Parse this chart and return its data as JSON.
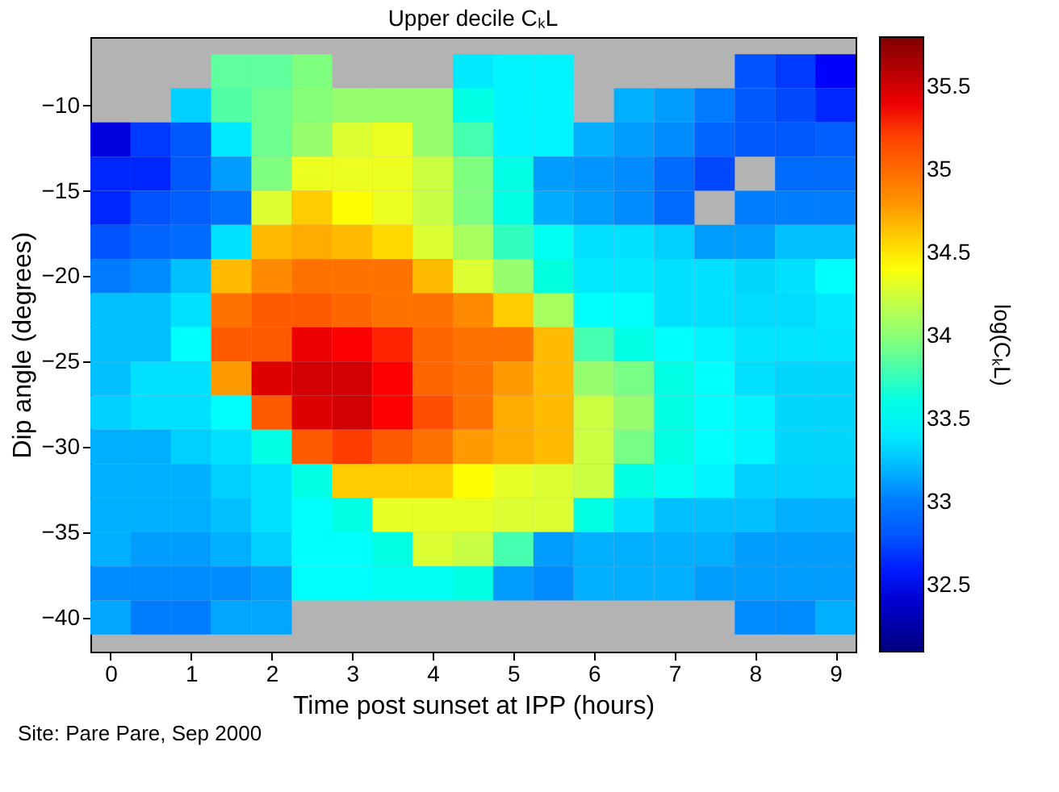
{
  "chart_data": {
    "type": "heatmap",
    "title": "Upper decile CₖL",
    "xlabel": "Time post sunset at IPP (hours)",
    "ylabel": "Dip angle (degrees)",
    "clabel": "log(CₖL)",
    "annotations": [
      "Site: Pare Pare,   Sep 2000"
    ],
    "x": [
      0,
      0.5,
      1,
      1.5,
      2,
      2.5,
      3,
      3.5,
      4,
      4.5,
      5,
      5.5,
      6,
      6.5,
      7,
      7.5,
      8,
      8.5,
      9
    ],
    "y": [
      -8,
      -10,
      -12,
      -14,
      -16,
      -18,
      -20,
      -22,
      -24,
      -26,
      -28,
      -30,
      -32,
      -34,
      -36,
      -38,
      -40
    ],
    "cells": [
      [
        null,
        null,
        null,
        33.86,
        33.86,
        33.95,
        null,
        null,
        null,
        33.4,
        33.44,
        33.44,
        null,
        null,
        null,
        null,
        32.79,
        32.68,
        32.56
      ],
      [
        null,
        null,
        33.3,
        33.83,
        33.9,
        33.98,
        34.04,
        34.04,
        34.04,
        33.61,
        33.45,
        33.45,
        null,
        33.18,
        33.12,
        33.0,
        32.81,
        32.74,
        32.62
      ],
      [
        32.45,
        32.68,
        32.81,
        33.4,
        33.9,
        34.04,
        34.29,
        34.35,
        34.04,
        33.8,
        33.44,
        33.44,
        33.18,
        33.12,
        33.06,
        32.87,
        32.81,
        32.81,
        32.85
      ],
      [
        32.62,
        32.62,
        32.81,
        33.12,
        33.95,
        34.35,
        34.35,
        34.35,
        34.23,
        33.95,
        33.61,
        33.12,
        33.09,
        33.06,
        32.91,
        32.74,
        null,
        32.91,
        32.91
      ],
      [
        32.62,
        32.79,
        32.85,
        32.93,
        34.29,
        34.6,
        34.41,
        34.35,
        34.22,
        33.95,
        33.61,
        33.17,
        33.12,
        33.06,
        32.91,
        null,
        33.02,
        33.02,
        33.02
      ],
      [
        32.79,
        32.87,
        32.91,
        33.36,
        34.66,
        34.72,
        34.66,
        34.55,
        34.29,
        34.1,
        33.75,
        33.55,
        33.36,
        33.36,
        33.3,
        33.12,
        33.12,
        33.24,
        33.24
      ],
      [
        33.0,
        33.06,
        33.24,
        34.66,
        34.84,
        34.96,
        34.96,
        34.96,
        34.66,
        34.29,
        34.04,
        33.63,
        33.4,
        33.4,
        33.36,
        33.36,
        33.32,
        33.36,
        33.49
      ],
      [
        33.24,
        33.24,
        33.36,
        34.96,
        35.09,
        35.09,
        35.03,
        34.96,
        34.96,
        34.84,
        34.6,
        34.1,
        33.49,
        33.49,
        33.36,
        33.36,
        33.34,
        33.34,
        33.4
      ],
      [
        33.24,
        33.24,
        33.49,
        35.09,
        35.09,
        35.4,
        35.34,
        35.29,
        35.03,
        34.96,
        34.96,
        34.66,
        33.8,
        33.61,
        33.49,
        33.44,
        33.38,
        33.38,
        33.38
      ],
      [
        33.24,
        33.36,
        33.36,
        34.78,
        35.45,
        35.5,
        35.5,
        35.34,
        35.03,
        34.96,
        34.78,
        34.66,
        34.04,
        33.93,
        33.61,
        33.49,
        33.36,
        33.32,
        33.32
      ],
      [
        33.3,
        33.36,
        33.36,
        33.49,
        35.09,
        35.45,
        35.5,
        35.34,
        35.15,
        34.96,
        34.72,
        34.66,
        34.23,
        34.04,
        33.61,
        33.49,
        33.45,
        33.32,
        33.32
      ],
      [
        33.18,
        33.18,
        33.3,
        33.36,
        33.61,
        35.09,
        35.22,
        35.09,
        34.96,
        34.78,
        34.72,
        34.66,
        34.23,
        33.93,
        33.61,
        33.49,
        33.45,
        33.32,
        33.32
      ],
      [
        33.18,
        33.18,
        33.18,
        33.3,
        33.36,
        33.61,
        34.6,
        34.6,
        34.6,
        34.41,
        34.33,
        34.29,
        34.23,
        33.61,
        33.55,
        33.44,
        33.3,
        33.3,
        33.3
      ],
      [
        33.18,
        33.18,
        33.18,
        33.24,
        33.36,
        33.49,
        33.61,
        34.33,
        34.33,
        34.33,
        34.29,
        34.29,
        33.61,
        33.36,
        33.24,
        33.24,
        33.24,
        33.18,
        33.18
      ],
      [
        33.18,
        33.12,
        33.12,
        33.18,
        33.3,
        33.49,
        33.49,
        33.61,
        34.29,
        34.22,
        33.8,
        33.12,
        33.18,
        33.18,
        33.18,
        33.18,
        33.12,
        33.12,
        33.12
      ],
      [
        33.06,
        33.06,
        33.06,
        33.06,
        33.12,
        33.49,
        33.49,
        33.55,
        33.55,
        33.61,
        33.12,
        33.06,
        33.18,
        33.18,
        33.18,
        33.12,
        33.12,
        33.12,
        33.12
      ],
      [
        33.15,
        33.02,
        33.02,
        33.15,
        33.15,
        null,
        null,
        null,
        null,
        null,
        null,
        null,
        null,
        null,
        null,
        null,
        33.06,
        33.06,
        33.18
      ]
    ],
    "xlim": [
      -0.25,
      9.25
    ],
    "xticks": [
      0,
      1,
      2,
      3,
      4,
      5,
      6,
      7,
      8,
      9
    ],
    "ylim": [
      -42,
      -6
    ],
    "yticks": [
      -40,
      -35,
      -30,
      -25,
      -20,
      -15,
      -10
    ],
    "clim": [
      32.1,
      35.8
    ],
    "cticks": [
      32.5,
      33,
      33.5,
      34,
      34.5,
      35,
      35.5
    ]
  }
}
